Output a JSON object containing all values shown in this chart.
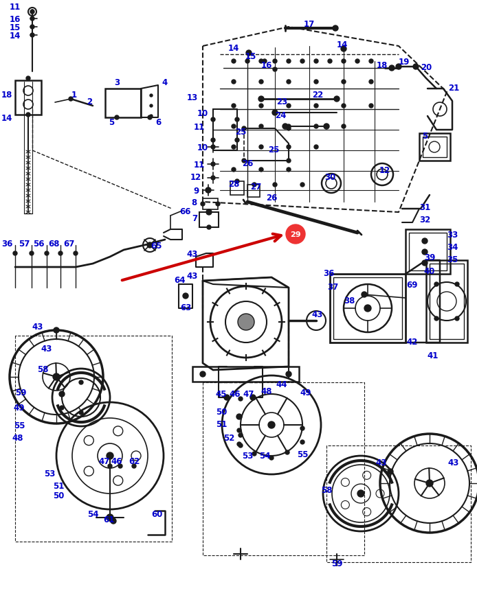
{
  "bg_color": "#ffffff",
  "line_color": "#1a1a1a",
  "label_color": "#0000cc",
  "arrow_color": "#cc0000",
  "circle29_bg": "#ee3333",
  "circle29_fg": "#ffffff",
  "figsize": [
    6.94,
    8.62
  ],
  "dpi": 100,
  "xlim": [
    0,
    694
  ],
  "ylim": [
    0,
    862
  ]
}
